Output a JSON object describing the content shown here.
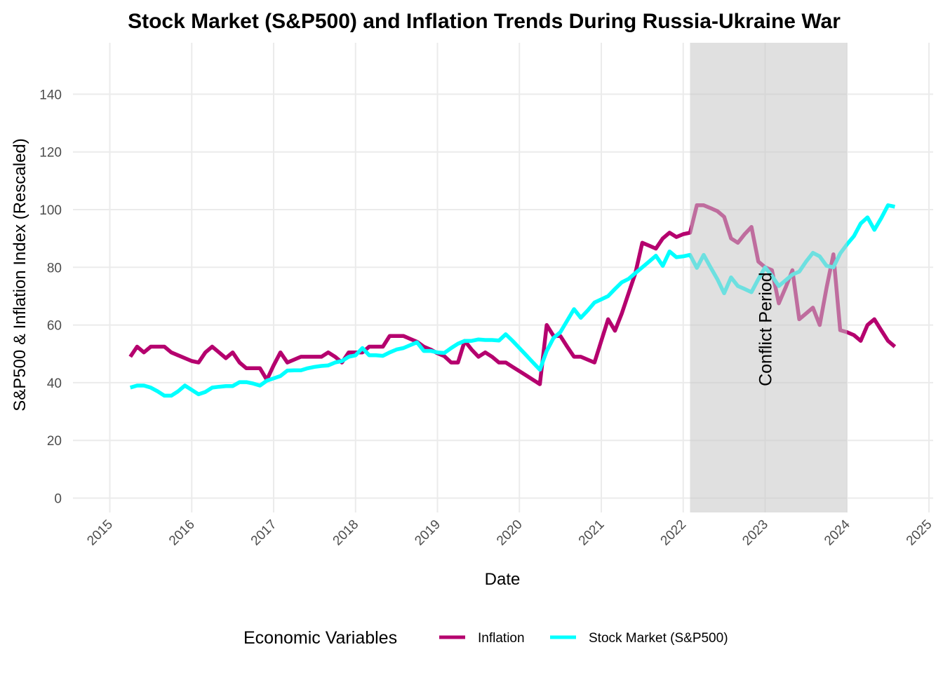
{
  "chart_data": {
    "type": "line",
    "title": "Stock Market (S&P500) and Inflation Trends During Russia-Ukraine War",
    "xlabel": "Date",
    "ylabel": "S&P500 & Inflation Index (Rescaled)",
    "x_ticks": [
      "2015",
      "2016",
      "2017",
      "2018",
      "2019",
      "2020",
      "2021",
      "2022",
      "2023",
      "2024",
      "2025"
    ],
    "y_ticks": [
      0,
      20,
      40,
      60,
      80,
      100,
      120,
      140
    ],
    "xlim": [
      "2014-10",
      "2025-02"
    ],
    "ylim": [
      -6,
      158
    ],
    "grid": true,
    "legend": {
      "title": "Economic Variables",
      "position": "bottom",
      "entries": [
        "Inflation",
        "Stock Market (S&P500)"
      ]
    },
    "annotation": {
      "text": "Conflict Period",
      "x": "2023-01",
      "y": 60,
      "shaded_range": [
        "2022-02",
        "2024-01"
      ]
    },
    "series": [
      {
        "name": "Inflation",
        "color": "#B5006E",
        "x": [
          "2015-04",
          "2015-05",
          "2015-06",
          "2015-07",
          "2015-08",
          "2015-09",
          "2015-10",
          "2015-11",
          "2015-12",
          "2016-01",
          "2016-02",
          "2016-03",
          "2016-04",
          "2016-05",
          "2016-06",
          "2016-07",
          "2016-08",
          "2016-09",
          "2016-10",
          "2016-11",
          "2016-12",
          "2017-01",
          "2017-02",
          "2017-03",
          "2017-04",
          "2017-05",
          "2017-06",
          "2017-07",
          "2017-08",
          "2017-09",
          "2017-10",
          "2017-11",
          "2017-12",
          "2018-01",
          "2018-02",
          "2018-03",
          "2018-04",
          "2018-05",
          "2018-06",
          "2018-07",
          "2018-08",
          "2018-09",
          "2018-10",
          "2018-11",
          "2018-12",
          "2019-01",
          "2019-02",
          "2019-03",
          "2019-04",
          "2019-05",
          "2019-06",
          "2019-07",
          "2019-08",
          "2019-09",
          "2019-10",
          "2019-11",
          "2019-12",
          "2020-01",
          "2020-02",
          "2020-03",
          "2020-04",
          "2020-05",
          "2020-06",
          "2020-07",
          "2020-08",
          "2020-09",
          "2020-10",
          "2020-11",
          "2020-12",
          "2021-01",
          "2021-02",
          "2021-03",
          "2021-04",
          "2021-05",
          "2021-06",
          "2021-07",
          "2021-08",
          "2021-09",
          "2021-10",
          "2021-11",
          "2021-12",
          "2022-01",
          "2022-02",
          "2022-03",
          "2022-04",
          "2022-05",
          "2022-06",
          "2022-07",
          "2022-08",
          "2022-09",
          "2022-10",
          "2022-11",
          "2022-12",
          "2023-01",
          "2023-02",
          "2023-03",
          "2023-04",
          "2023-05",
          "2023-06",
          "2023-07",
          "2023-08",
          "2023-09",
          "2023-10",
          "2023-11",
          "2023-12",
          "2024-01",
          "2024-02",
          "2024-03",
          "2024-04",
          "2024-05",
          "2024-06",
          "2024-07",
          "2024-08"
        ],
        "values": [
          49,
          52.5,
          50.5,
          52.5,
          52.5,
          52.5,
          50.5,
          49.5,
          48.5,
          47.5,
          47,
          50.5,
          52.5,
          50.5,
          48.5,
          50.5,
          47,
          45,
          45,
          45,
          41,
          46,
          50.5,
          47,
          48,
          49,
          49,
          49,
          49,
          50.5,
          49,
          47,
          50.5,
          50.5,
          50.5,
          52.5,
          52.5,
          52.5,
          56.2,
          56.2,
          56.2,
          55.2,
          54.2,
          52.5,
          51.5,
          50.2,
          49.2,
          47,
          47,
          54.5,
          51.5,
          49,
          50.5,
          49,
          47,
          47,
          45.5,
          44,
          42.5,
          41,
          39.5,
          60,
          56.2,
          56.2,
          52.5,
          49,
          49,
          48,
          47,
          54.5,
          62,
          58,
          64,
          71,
          78,
          88.5,
          87.5,
          86.5,
          90,
          92,
          90.5,
          91.5,
          92,
          101.5,
          101.5,
          100.5,
          99.5,
          97.5,
          90,
          88.5,
          91.5,
          94,
          82,
          80,
          79,
          67.5,
          73,
          79,
          62,
          64,
          66,
          60,
          73,
          84.5,
          58.2,
          57.5,
          56.5,
          54.5,
          60,
          62,
          58.2,
          54.5,
          52.5
        ]
      },
      {
        "name": "Stock Market (S&P500)",
        "color": "#00FFFF",
        "x": [
          "2015-04",
          "2015-05",
          "2015-06",
          "2015-07",
          "2015-08",
          "2015-09",
          "2015-10",
          "2015-11",
          "2015-12",
          "2016-01",
          "2016-02",
          "2016-03",
          "2016-04",
          "2016-05",
          "2016-06",
          "2016-07",
          "2016-08",
          "2016-09",
          "2016-10",
          "2016-11",
          "2016-12",
          "2017-01",
          "2017-02",
          "2017-03",
          "2017-04",
          "2017-05",
          "2017-06",
          "2017-07",
          "2017-08",
          "2017-09",
          "2017-10",
          "2017-11",
          "2017-12",
          "2018-01",
          "2018-02",
          "2018-03",
          "2018-04",
          "2018-05",
          "2018-06",
          "2018-07",
          "2018-08",
          "2018-09",
          "2018-10",
          "2018-11",
          "2018-12",
          "2019-01",
          "2019-02",
          "2019-03",
          "2019-04",
          "2019-05",
          "2019-06",
          "2019-07",
          "2019-08",
          "2019-09",
          "2019-10",
          "2019-11",
          "2019-12",
          "2020-01",
          "2020-02",
          "2020-03",
          "2020-04",
          "2020-05",
          "2020-06",
          "2020-07",
          "2020-08",
          "2020-09",
          "2020-10",
          "2020-11",
          "2020-12",
          "2021-01",
          "2021-02",
          "2021-03",
          "2021-04",
          "2021-05",
          "2021-06",
          "2021-07",
          "2021-08",
          "2021-09",
          "2021-10",
          "2021-11",
          "2021-12",
          "2022-01",
          "2022-02",
          "2022-03",
          "2022-04",
          "2022-05",
          "2022-06",
          "2022-07",
          "2022-08",
          "2022-09",
          "2022-10",
          "2022-11",
          "2022-12",
          "2023-01",
          "2023-02",
          "2023-03",
          "2023-04",
          "2023-05",
          "2023-06",
          "2023-07",
          "2023-08",
          "2023-09",
          "2023-10",
          "2023-11",
          "2023-12",
          "2024-01",
          "2024-02",
          "2024-03",
          "2024-04",
          "2024-05",
          "2024-06",
          "2024-07",
          "2024-08"
        ],
        "values": [
          38.3,
          39,
          39,
          38.3,
          37,
          35.5,
          35.5,
          37,
          39,
          37.5,
          36,
          36.8,
          38.3,
          38.6,
          38.8,
          38.8,
          40.2,
          40.2,
          39.7,
          39,
          40.7,
          41.5,
          42.3,
          44.2,
          44.3,
          44.3,
          45,
          45.5,
          45.8,
          46,
          47,
          47.5,
          49,
          49.5,
          52,
          49.5,
          49.5,
          49.3,
          50.5,
          51.5,
          52,
          53,
          54,
          51,
          51,
          50.5,
          50.3,
          52,
          53.5,
          54.5,
          54.5,
          55,
          54.8,
          54.8,
          54.6,
          56.8,
          54.5,
          52,
          49.5,
          47,
          44.5,
          51,
          55.5,
          57.5,
          61.5,
          65.5,
          62.5,
          65,
          67.8,
          68.9,
          70,
          72.5,
          74.8,
          76,
          78,
          80,
          82,
          84,
          80.5,
          85.5,
          83.5,
          83.8,
          84.3,
          79.8,
          84.3,
          80,
          75.9,
          71,
          76.5,
          73.5,
          72.5,
          71.4,
          75.9,
          80,
          77,
          73.5,
          75.5,
          77.5,
          78.5,
          82,
          85,
          83.8,
          80.5,
          80,
          84.8,
          88,
          90.8,
          95.2,
          97.3,
          93,
          97,
          101.5,
          101
        ]
      }
    ]
  }
}
